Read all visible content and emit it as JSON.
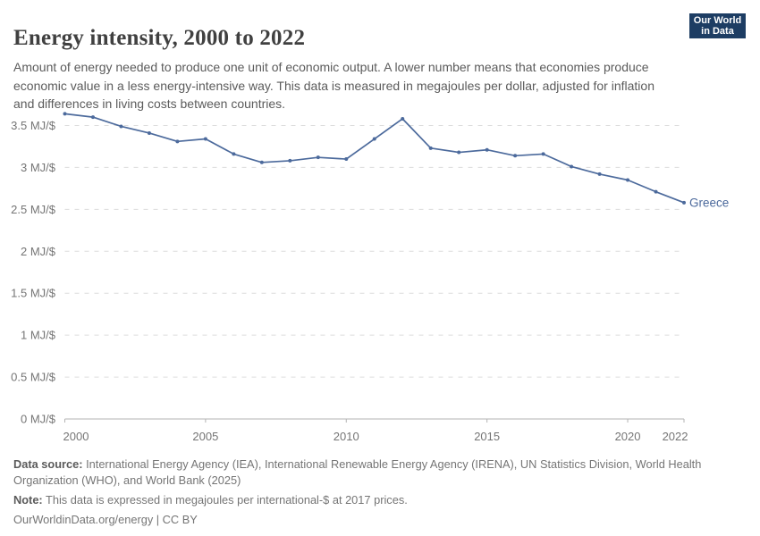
{
  "header": {
    "title": "Energy intensity, 2000 to 2022",
    "subtitle": "Amount of energy needed to produce one unit of economic output. A lower number means that economies produce economic value in a less energy-intensive way. This data is measured in megajoules per dollar, adjusted for inflation and differences in living costs between countries.",
    "logo": {
      "line1": "Our World",
      "line2": "in Data",
      "bg_color": "#1d3d63",
      "stripe_color": "#d0293e"
    }
  },
  "chart_data": {
    "type": "line",
    "title": "Energy intensity, 2000 to 2022",
    "xlabel": "",
    "ylabel": "MJ/$",
    "xlim": [
      2000,
      2022
    ],
    "ylim": [
      0,
      3.5
    ],
    "grid": "horizontal-dashed",
    "legend_position": "end-of-line",
    "categories": [
      2000,
      2001,
      2002,
      2003,
      2004,
      2005,
      2006,
      2007,
      2008,
      2009,
      2010,
      2011,
      2012,
      2013,
      2014,
      2015,
      2016,
      2017,
      2018,
      2019,
      2020,
      2021,
      2022
    ],
    "series": [
      {
        "name": "Greece",
        "color": "#4C6A9C",
        "values": [
          3.64,
          3.6,
          3.49,
          3.41,
          3.31,
          3.34,
          3.16,
          3.06,
          3.08,
          3.12,
          3.1,
          3.34,
          3.58,
          3.23,
          3.18,
          3.21,
          3.14,
          3.16,
          3.01,
          2.92,
          2.85,
          2.71,
          2.58
        ]
      }
    ],
    "yticks": [
      {
        "value": 0,
        "label": "0 MJ/$"
      },
      {
        "value": 0.5,
        "label": "0.5 MJ/$"
      },
      {
        "value": 1,
        "label": "1 MJ/$"
      },
      {
        "value": 1.5,
        "label": "1.5 MJ/$"
      },
      {
        "value": 2,
        "label": "2 MJ/$"
      },
      {
        "value": 2.5,
        "label": "2.5 MJ/$"
      },
      {
        "value": 3,
        "label": "3 MJ/$"
      },
      {
        "value": 3.5,
        "label": "3.5 MJ/$"
      }
    ],
    "xticks": [
      {
        "value": 2000,
        "label": "2000"
      },
      {
        "value": 2005,
        "label": "2005"
      },
      {
        "value": 2010,
        "label": "2010"
      },
      {
        "value": 2015,
        "label": "2015"
      },
      {
        "value": 2020,
        "label": "2020"
      },
      {
        "value": 2022,
        "label": "2022"
      }
    ]
  },
  "footer": {
    "datasource_label": "Data source:",
    "datasource_text": " International Energy Agency (IEA), International Renewable Energy Agency (IRENA), UN Statistics Division, World Health Organization (WHO), and World Bank (2025)",
    "note_label": "Note:",
    "note_text": " This data is expressed in megajoules per international-$ at 2017 prices.",
    "link": "OurWorldinData.org/energy | CC BY"
  }
}
